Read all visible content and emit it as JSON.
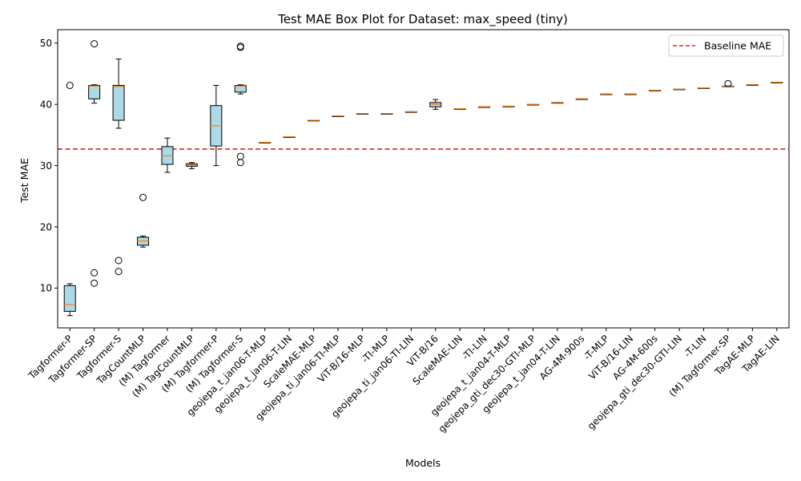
{
  "chart_data": {
    "type": "box",
    "title": "Test MAE Box Plot for Dataset: max_speed (tiny)",
    "xlabel": "Models",
    "ylabel": "Test MAE",
    "ylim": [
      3.5,
      52.2
    ],
    "yticks": [
      10,
      20,
      30,
      40,
      50
    ],
    "grid": false,
    "legend_position": "top-right",
    "baseline": {
      "name": "Baseline MAE",
      "value": 32.7,
      "color": "#d62728"
    },
    "colors": {
      "box_fill": "#add8e6",
      "median": "#ff7f0e",
      "outline": "#000000"
    },
    "categories": [
      "Tagformer-P",
      "Tagformer-SP",
      "Tagformer-S",
      "TagCountMLP",
      "(M) Tagformer",
      "(M) TagCountMLP",
      "(M) Tagformer-P",
      "(M) Tagformer-S",
      "geojepa_t_jan06-T-MLP",
      "geojepa_t_jan06-T-LIN",
      "ScaleMAE-MLP",
      "geojepa_ti_jan06-TI-MLP",
      "ViT-B/16-MLP",
      "-TI-MLP",
      "geojepa_ti_jan06-TI-LIN",
      "ViT-B/16",
      "ScaleMAE-LIN",
      "-TI-LIN",
      "geojepa_t_jan04-T-MLP",
      "geojepa_gti_dec30-GTI-MLP",
      "geojepa_t_jan04-T-LIN",
      "AG-4M-900s",
      "-T-MLP",
      "ViT-B/16-LIN",
      "AG-4M-600s",
      "geojepa_gti_dec30-GTI-LIN",
      "-T-LIN",
      "(M) Tagformer-SP",
      "TagAE-MLP",
      "TagAE-LIN"
    ],
    "boxes": [
      {
        "whislo": 5.5,
        "q1": 6.2,
        "med": 7.3,
        "q3": 10.4,
        "whishi": 10.7,
        "fliers": [
          43.1
        ]
      },
      {
        "whislo": 40.2,
        "q1": 40.9,
        "med": 43.0,
        "q3": 43.1,
        "whishi": 43.2,
        "fliers": [
          49.9,
          12.5,
          10.8
        ]
      },
      {
        "whislo": 36.1,
        "q1": 37.4,
        "med": 42.9,
        "q3": 43.1,
        "whishi": 47.4,
        "fliers": [
          14.5,
          12.7
        ]
      },
      {
        "whislo": 16.7,
        "q1": 17.0,
        "med": 17.7,
        "q3": 18.3,
        "whishi": 18.5,
        "fliers": [
          24.8
        ]
      },
      {
        "whislo": 28.9,
        "q1": 30.2,
        "med": 31.6,
        "q3": 33.1,
        "whishi": 34.5,
        "fliers": []
      },
      {
        "whislo": 29.5,
        "q1": 29.9,
        "med": 30.1,
        "q3": 30.3,
        "whishi": 30.5,
        "fliers": []
      },
      {
        "whislo": 30.0,
        "q1": 33.2,
        "med": 36.5,
        "q3": 39.8,
        "whishi": 43.1,
        "fliers": []
      },
      {
        "whislo": 41.7,
        "q1": 42.0,
        "med": 43.0,
        "q3": 43.1,
        "whishi": 43.2,
        "fliers": [
          49.3,
          49.5,
          31.5,
          30.5
        ]
      },
      {
        "whislo": 33.8,
        "q1": 33.8,
        "med": 33.8,
        "q3": 33.8,
        "whishi": 33.8,
        "fliers": []
      },
      {
        "whislo": 34.7,
        "q1": 34.7,
        "med": 34.7,
        "q3": 34.7,
        "whishi": 34.7,
        "fliers": []
      },
      {
        "whislo": 37.4,
        "q1": 37.4,
        "med": 37.4,
        "q3": 37.4,
        "whishi": 37.4,
        "fliers": []
      },
      {
        "whislo": 38.1,
        "q1": 38.1,
        "med": 38.1,
        "q3": 38.1,
        "whishi": 38.1,
        "fliers": []
      },
      {
        "whislo": 38.5,
        "q1": 38.5,
        "med": 38.5,
        "q3": 38.5,
        "whishi": 38.5,
        "fliers": []
      },
      {
        "whislo": 38.5,
        "q1": 38.5,
        "med": 38.5,
        "q3": 38.5,
        "whishi": 38.5,
        "fliers": []
      },
      {
        "whislo": 38.8,
        "q1": 38.8,
        "med": 38.8,
        "q3": 38.8,
        "whishi": 38.8,
        "fliers": []
      },
      {
        "whislo": 39.2,
        "q1": 39.6,
        "med": 40.0,
        "q3": 40.3,
        "whishi": 40.8,
        "fliers": []
      },
      {
        "whislo": 39.3,
        "q1": 39.3,
        "med": 39.3,
        "q3": 39.3,
        "whishi": 39.3,
        "fliers": []
      },
      {
        "whislo": 39.6,
        "q1": 39.6,
        "med": 39.6,
        "q3": 39.6,
        "whishi": 39.6,
        "fliers": []
      },
      {
        "whislo": 39.7,
        "q1": 39.7,
        "med": 39.7,
        "q3": 39.7,
        "whishi": 39.7,
        "fliers": []
      },
      {
        "whislo": 40.0,
        "q1": 40.0,
        "med": 40.0,
        "q3": 40.0,
        "whishi": 40.0,
        "fliers": []
      },
      {
        "whislo": 40.3,
        "q1": 40.3,
        "med": 40.3,
        "q3": 40.3,
        "whishi": 40.3,
        "fliers": []
      },
      {
        "whislo": 40.9,
        "q1": 40.9,
        "med": 40.9,
        "q3": 40.9,
        "whishi": 40.9,
        "fliers": []
      },
      {
        "whislo": 41.7,
        "q1": 41.7,
        "med": 41.7,
        "q3": 41.7,
        "whishi": 41.7,
        "fliers": []
      },
      {
        "whislo": 41.7,
        "q1": 41.7,
        "med": 41.7,
        "q3": 41.7,
        "whishi": 41.7,
        "fliers": []
      },
      {
        "whislo": 42.3,
        "q1": 42.3,
        "med": 42.3,
        "q3": 42.3,
        "whishi": 42.3,
        "fliers": []
      },
      {
        "whislo": 42.5,
        "q1": 42.5,
        "med": 42.5,
        "q3": 42.5,
        "whishi": 42.5,
        "fliers": []
      },
      {
        "whislo": 42.7,
        "q1": 42.7,
        "med": 42.7,
        "q3": 42.7,
        "whishi": 42.7,
        "fliers": []
      },
      {
        "whislo": 43.0,
        "q1": 43.0,
        "med": 43.0,
        "q3": 43.0,
        "whishi": 43.0,
        "fliers": [
          43.4
        ]
      },
      {
        "whislo": 43.2,
        "q1": 43.2,
        "med": 43.2,
        "q3": 43.2,
        "whishi": 43.2,
        "fliers": []
      },
      {
        "whislo": 43.6,
        "q1": 43.6,
        "med": 43.6,
        "q3": 43.6,
        "whishi": 43.6,
        "fliers": []
      }
    ]
  }
}
